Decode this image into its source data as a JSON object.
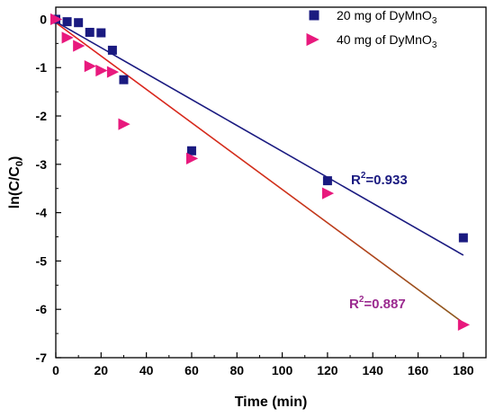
{
  "chart_data": {
    "type": "scatter",
    "xlabel": "Time (min)",
    "ylabel_main": "ln(C/C",
    "ylabel_sub": "0",
    "ylabel_end": ")",
    "xlim": [
      0,
      190
    ],
    "ylim": [
      -7,
      0.25
    ],
    "x_ticks": [
      "0",
      "20",
      "40",
      "60",
      "80",
      "100",
      "120",
      "140",
      "160",
      "180"
    ],
    "y_ticks": [
      "0",
      "-1",
      "-2",
      "-3",
      "-4",
      "-5",
      "-6",
      "-7"
    ],
    "series": [
      {
        "name_main": "20 mg of DyMnO",
        "name_sub": "3",
        "marker": "square",
        "color": "#1a1a80",
        "fit_color": "#1a1a80",
        "x": [
          0,
          5,
          10,
          15,
          20,
          25,
          30,
          60,
          120,
          180
        ],
        "y": [
          0,
          -0.05,
          -0.07,
          -0.27,
          -0.28,
          -0.64,
          -1.25,
          -2.72,
          -3.34,
          -4.52
        ],
        "fit": {
          "x": [
            0,
            180
          ],
          "y": [
            -0.05,
            -4.88
          ]
        },
        "r2_label": "R",
        "r2_sup": "2",
        "r2_value": "=0.933",
        "r2_color": "#1a1a80"
      },
      {
        "name_main": "40 mg of DyMnO",
        "name_sub": "3",
        "marker": "triangle-right",
        "color": "#e8197d",
        "fit_color": "#e02020",
        "x": [
          0,
          5,
          10,
          15,
          20,
          25,
          30,
          60,
          120,
          180
        ],
        "y": [
          0,
          -0.38,
          -0.55,
          -0.97,
          -1.06,
          -1.09,
          -2.17,
          -2.88,
          -3.6,
          -6.32
        ],
        "fit": {
          "x": [
            0,
            180
          ],
          "y": [
            -0.07,
            -6.28
          ]
        },
        "r2_label": "R",
        "r2_sup": "2",
        "r2_value": "=0.887",
        "r2_color": "#9b2a8f"
      }
    ]
  }
}
